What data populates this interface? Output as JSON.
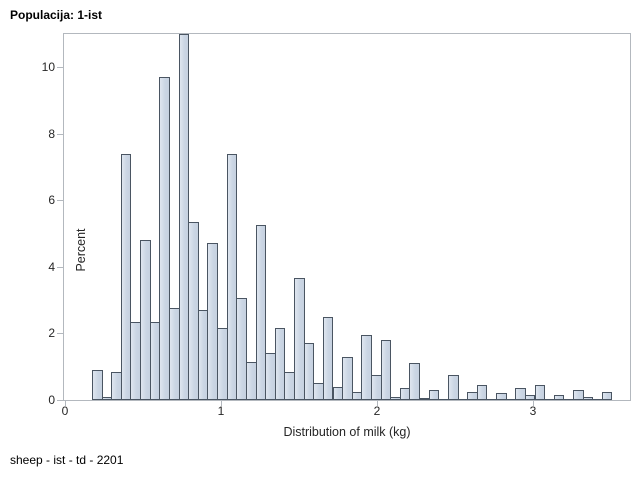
{
  "header": {
    "title": "Populacija: 1-ist"
  },
  "footnote": "sheep - ist - td - 2201",
  "chart_data": {
    "type": "histogram",
    "title": "Populacija: 1-ist",
    "xlabel": "Distribution of milk (kg)",
    "ylabel": "Percent",
    "x_ticks": [
      0,
      1,
      2,
      3
    ],
    "y_ticks": [
      0,
      2,
      4,
      6,
      8,
      10
    ],
    "xlim": [
      0,
      3.63
    ],
    "ylim": [
      0,
      11.1
    ],
    "grid": false,
    "legend": false,
    "bin_start_kg": 0.17,
    "bin_width_kg": 0.062,
    "values_percent": [
      0.9,
      0.1,
      0.85,
      7.4,
      2.35,
      4.8,
      2.35,
      9.7,
      2.75,
      11.0,
      5.35,
      2.7,
      4.7,
      2.15,
      7.4,
      3.05,
      1.15,
      5.25,
      1.4,
      2.15,
      0.85,
      3.65,
      1.7,
      0.5,
      2.5,
      0.4,
      1.3,
      0.25,
      1.95,
      0.75,
      1.8,
      0.1,
      0.35,
      1.1,
      0.05,
      0.3,
      0,
      0.75,
      0,
      0.25,
      0.45,
      0,
      0.2,
      0,
      0.35,
      0.15,
      0.45,
      0,
      0.15,
      0,
      0.3,
      0.1,
      0,
      0.25
    ],
    "colors": {
      "bar_fill": "#cbd6e4",
      "bar_border": "#4a5562",
      "frame": "#b3b8be",
      "text": "#262626"
    }
  }
}
